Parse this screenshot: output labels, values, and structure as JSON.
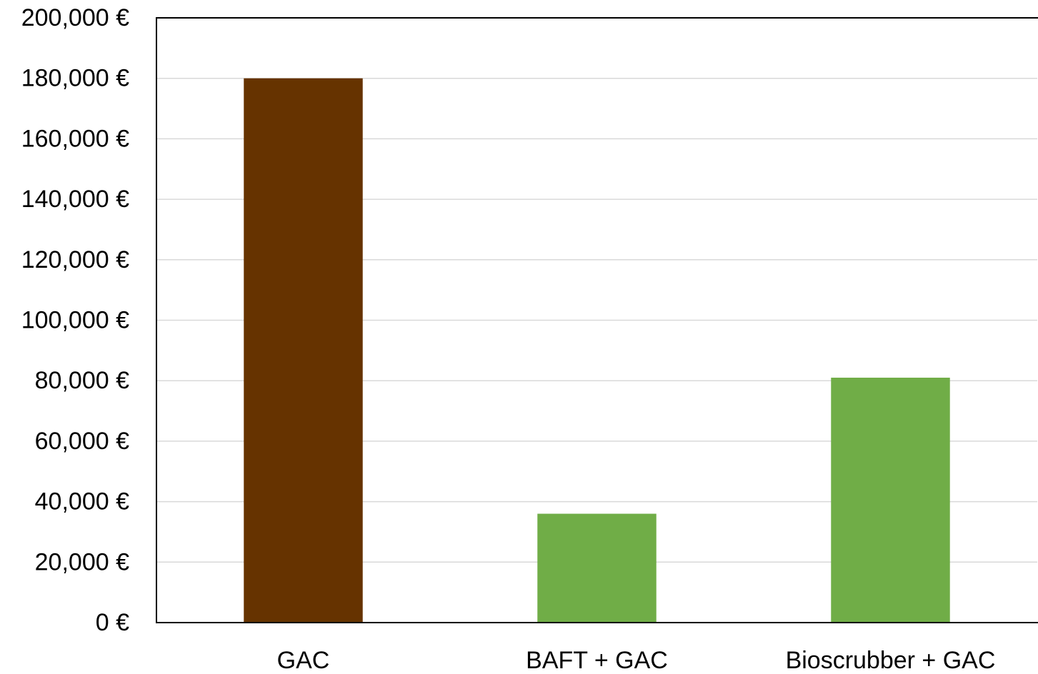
{
  "chart_data": {
    "type": "bar",
    "categories": [
      "GAC",
      "BAFT + GAC",
      "Bioscrubber + GAC"
    ],
    "values": [
      180000,
      36000,
      81000
    ],
    "bar_colors": [
      "#663300",
      "#70AD47",
      "#70AD47"
    ],
    "ylim": [
      0,
      200000
    ],
    "y_ticks": [
      0,
      20000,
      40000,
      60000,
      80000,
      100000,
      120000,
      140000,
      160000,
      180000,
      200000
    ],
    "y_tick_labels": [
      "0 €",
      "20,000 €",
      "40,000 €",
      "60,000 €",
      "80,000 €",
      "100,000 €",
      "120,000 €",
      "140,000 €",
      "160,000 €",
      "180,000 €",
      "200,000 €"
    ],
    "grid": true,
    "gridline_color": "#d9d9d9",
    "axis_color": "#000000",
    "title": "",
    "xlabel": "",
    "ylabel": ""
  }
}
